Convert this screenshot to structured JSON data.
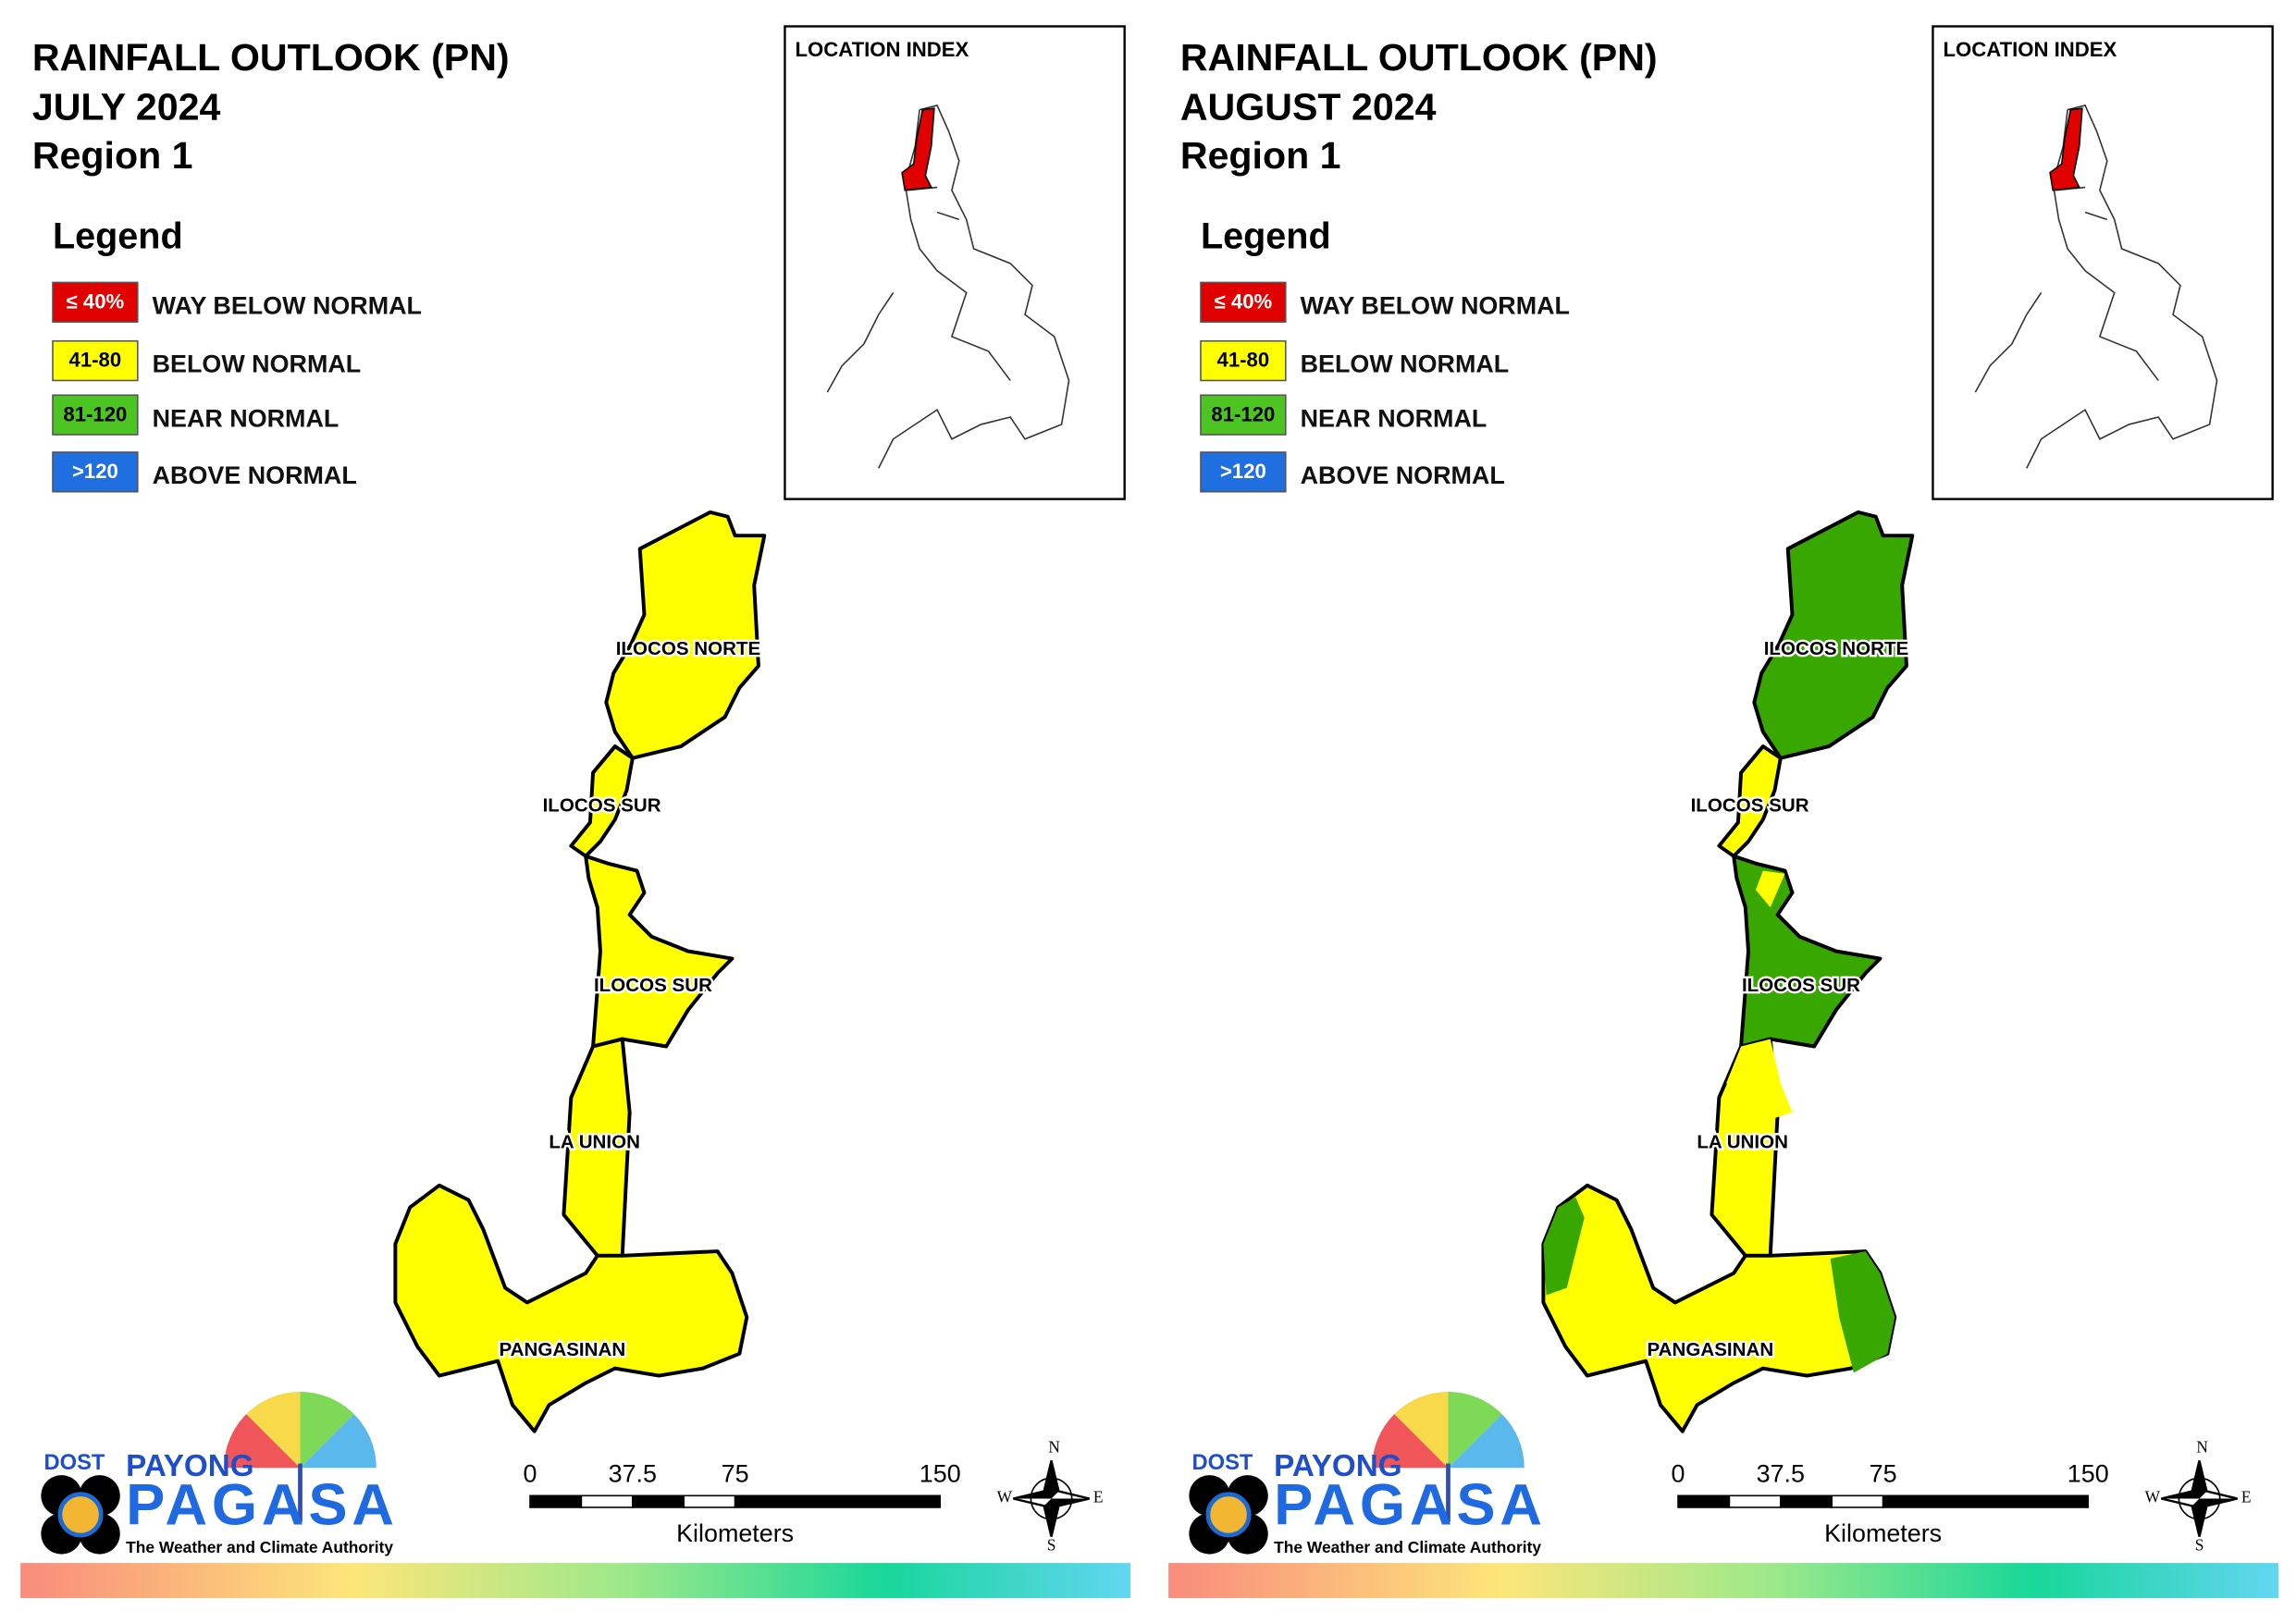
{
  "panels": [
    {
      "title_lines": [
        "RAINFALL OUTLOOK (PN)",
        "JULY 2024",
        "Region 1"
      ],
      "legend_title": "Legend",
      "legend": [
        {
          "range": "≤ 40%",
          "label": "WAY BELOW NORMAL",
          "color": "#e00000"
        },
        {
          "range": "41-80",
          "label": "BELOW NORMAL",
          "color": "#ffff00"
        },
        {
          "range": "81-120",
          "label": "NEAR NORMAL",
          "color": "#4cc522"
        },
        {
          "range": ">120",
          "label": "ABOVE NORMAL",
          "color": "#1f6fe0"
        }
      ],
      "location_index_title": "LOCATION INDEX",
      "provinces": [
        {
          "label": "ILOCOS NORTE",
          "color": "#ffff00"
        },
        {
          "label": "ILOCOS SUR",
          "color": "#ffff00"
        },
        {
          "label": "ILOCOS SUR",
          "color": "#ffff00"
        },
        {
          "label": "LA UNION",
          "color": "#ffff00"
        },
        {
          "label": "PANGASINAN",
          "color": "#ffff00"
        }
      ],
      "scale": {
        "ticks": [
          "0",
          "37.5",
          "75",
          "150"
        ],
        "unit": "Kilometers"
      },
      "compass": {
        "n": "N",
        "e": "E",
        "s": "S",
        "w": "W"
      },
      "logo": {
        "dost": "DOST",
        "payong": "PAYONG",
        "pagasa": "PAGASA",
        "tagline": "The Weather and Climate Authority"
      }
    },
    {
      "title_lines": [
        "RAINFALL OUTLOOK (PN)",
        "AUGUST 2024",
        "Region 1"
      ],
      "legend_title": "Legend",
      "legend": [
        {
          "range": "≤ 40%",
          "label": "WAY BELOW NORMAL",
          "color": "#e00000"
        },
        {
          "range": "41-80",
          "label": "BELOW NORMAL",
          "color": "#ffff00"
        },
        {
          "range": "81-120",
          "label": "NEAR NORMAL",
          "color": "#4cc522"
        },
        {
          "range": ">120",
          "label": "ABOVE NORMAL",
          "color": "#1f6fe0"
        }
      ],
      "location_index_title": "LOCATION INDEX",
      "provinces": [
        {
          "label": "ILOCOS NORTE",
          "color": "#38a800"
        },
        {
          "label": "ILOCOS SUR",
          "color": "#ffff00"
        },
        {
          "label": "ILOCOS SUR",
          "color": "#38a800"
        },
        {
          "label": "LA UNION",
          "color": "#ffff00"
        },
        {
          "label": "PANGASINAN",
          "color": "#ffff00"
        }
      ],
      "scale": {
        "ticks": [
          "0",
          "37.5",
          "75",
          "150"
        ],
        "unit": "Kilometers"
      },
      "compass": {
        "n": "N",
        "e": "E",
        "s": "S",
        "w": "W"
      },
      "logo": {
        "dost": "DOST",
        "payong": "PAYONG",
        "pagasa": "PAGASA",
        "tagline": "The Weather and Climate Authority"
      }
    }
  ]
}
